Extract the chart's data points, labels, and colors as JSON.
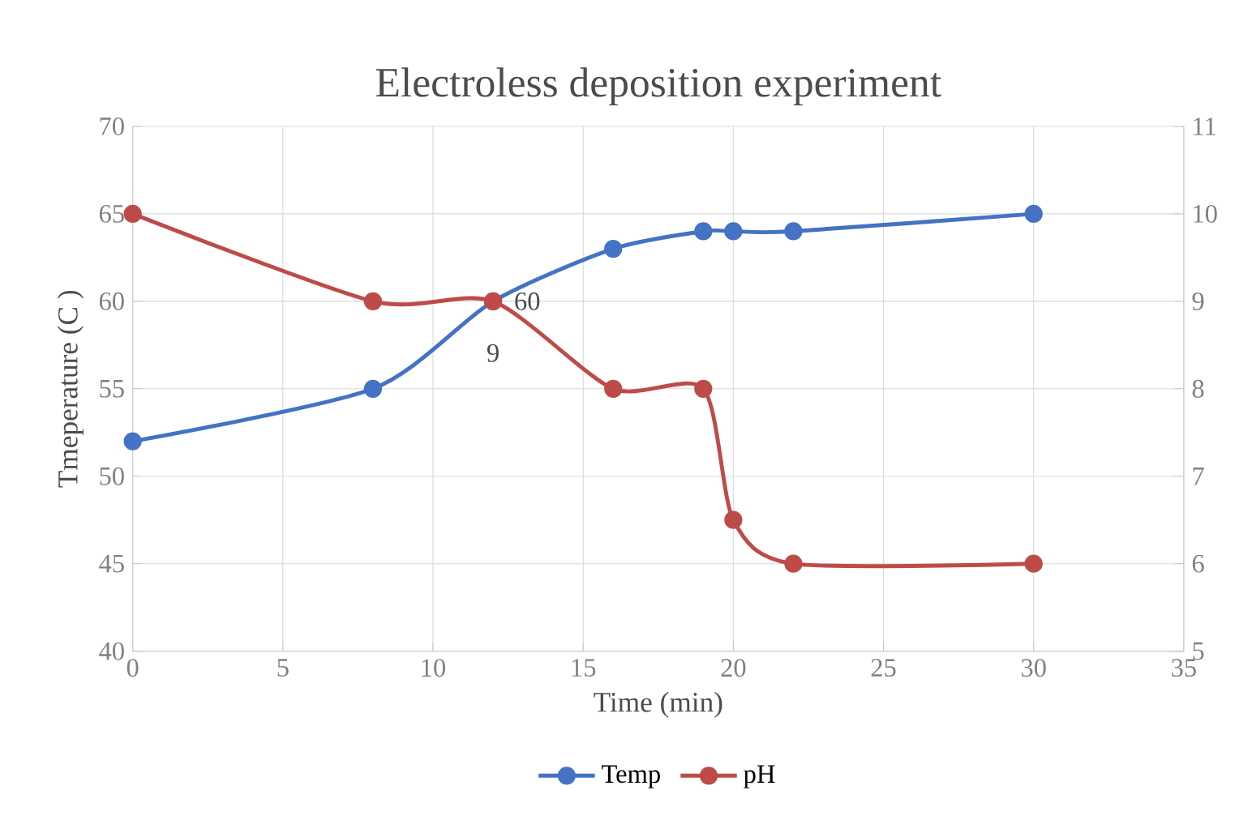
{
  "chart_data": {
    "type": "line",
    "title": "Electroless deposition experiment",
    "xlabel": "Time (min)",
    "ylabel": "Tmeperature (C )",
    "x": [
      0,
      8,
      12,
      16,
      19,
      20,
      22,
      30
    ],
    "series": [
      {
        "name": "Temp",
        "color": "#4472c4",
        "values": [
          52,
          55,
          60,
          63,
          64,
          64,
          64,
          65
        ]
      },
      {
        "name": "pH",
        "color": "#be4b48",
        "axis": "y2",
        "values": [
          10,
          9,
          9,
          8,
          8,
          6.5,
          6,
          6
        ]
      }
    ],
    "xlim": [
      0,
      35
    ],
    "xticks": [
      0,
      5,
      10,
      15,
      20,
      25,
      30,
      35
    ],
    "ylim": [
      40,
      70
    ],
    "yticks": [
      40,
      45,
      50,
      55,
      60,
      65,
      70
    ],
    "y2lim": [
      5,
      11
    ],
    "y2ticks": [
      5,
      6,
      7,
      8,
      9,
      10,
      11
    ],
    "annotations": [
      {
        "text": "60",
        "x": 12,
        "y": 60
      },
      "9"
    ],
    "grid": true,
    "legend": "bottom",
    "marker": "circle",
    "line_style": "solid"
  }
}
